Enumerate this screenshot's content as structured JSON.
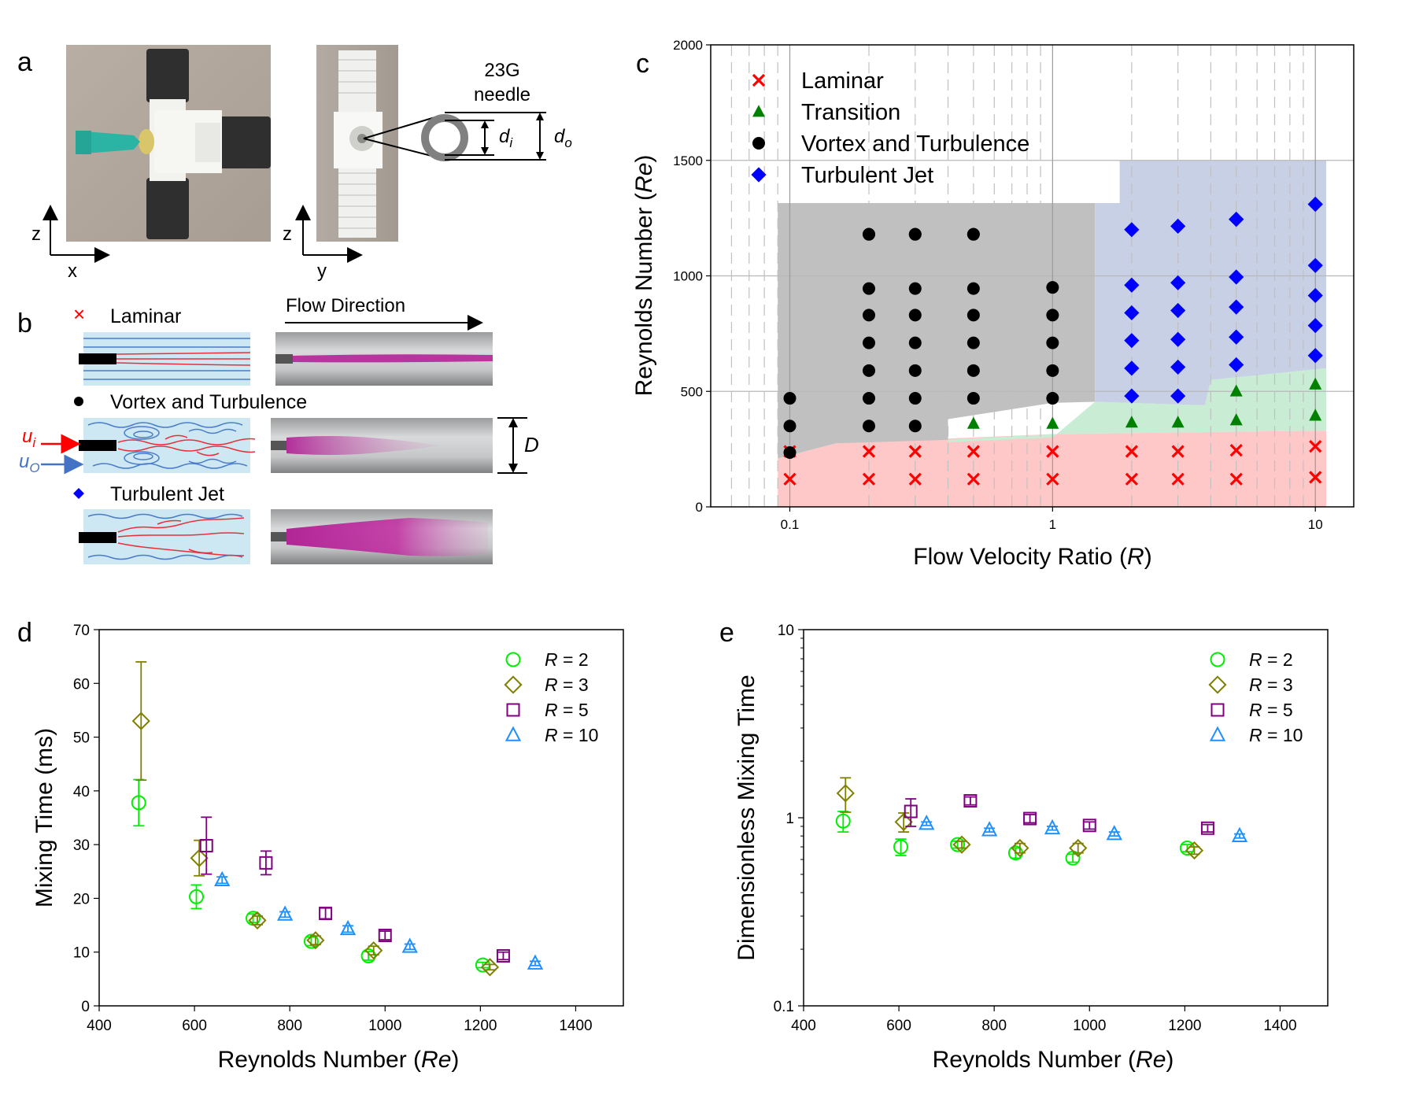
{
  "panels": {
    "a": "a",
    "b": "b",
    "c": "c",
    "d": "d",
    "e": "e"
  },
  "photos": {
    "axis1_vertical": "z",
    "axis1_horizontal": "x",
    "axis2_vertical": "z",
    "axis2_horizontal": "y",
    "needle_label_line1": "23G",
    "needle_label_line2": "needle",
    "di_label": "d",
    "di_sub": "i",
    "do_label": "d",
    "do_sub": "o"
  },
  "flow": {
    "direction_label": "Flow Direction",
    "laminar_label": "Laminar",
    "vortex_label": "Vortex and Turbulence",
    "jet_label": "Turbulent Jet",
    "ui_label": "u",
    "ui_sub": "i",
    "uo_label": "u",
    "uo_sub": "O",
    "D_label": "D"
  },
  "colors": {
    "laminar": "#ff0000",
    "transition": "#008000",
    "vortex": "#000000",
    "jet": "#0000ff",
    "laminar_region": "#ffc8c8",
    "transition_region": "#c8ecd4",
    "vortex_region": "#c0c0c0",
    "jet_region": "#c7d0e4",
    "r2": "#00ee00",
    "r3": "#808000",
    "r5": "#800080",
    "r10": "#1e90ff",
    "dye": "#cc33aa",
    "water": "#cde8f2"
  },
  "chart_data": [
    {
      "id": "c",
      "type": "scatter",
      "xlabel": "Flow Velocity Ratio",
      "xlabel_var": "R",
      "ylabel": "Reynolds Number",
      "ylabel_var": "Re",
      "xscale": "log",
      "xlim": [
        0.05,
        10
      ],
      "ylim": [
        0,
        2000
      ],
      "xticks": [
        "0.1",
        "1",
        "10"
      ],
      "yticks": [
        "0",
        "500",
        "1000",
        "1500",
        "2000"
      ],
      "legend_position": "top-left",
      "series": [
        {
          "name": "Laminar",
          "marker": "x",
          "x": [
            0.1,
            0.2,
            0.3,
            0.5,
            1,
            2,
            3,
            5,
            10,
            0.1,
            0.2,
            0.3,
            0.5,
            1,
            2,
            3,
            5,
            10
          ],
          "y": [
            120,
            120,
            120,
            120,
            120,
            120,
            120,
            120,
            128,
            240,
            240,
            240,
            240,
            240,
            240,
            240,
            245,
            262
          ]
        },
        {
          "name": "Transition",
          "marker": "triangle",
          "x": [
            0.5,
            1,
            2,
            3,
            5,
            10,
            5,
            10
          ],
          "y": [
            360,
            360,
            365,
            365,
            375,
            395,
            500,
            530
          ]
        },
        {
          "name": "Vortex and Turbulence",
          "marker": "circle",
          "x": [
            0.1,
            0.1,
            0.1,
            0.2,
            0.2,
            0.2,
            0.2,
            0.2,
            0.2,
            0.2,
            0.2,
            0.3,
            0.3,
            0.3,
            0.3,
            0.3,
            0.3,
            0.3,
            0.3,
            0.5,
            0.5,
            0.5,
            0.5,
            0.5,
            0.5,
            0.5,
            1,
            1,
            1,
            1,
            1
          ],
          "y": [
            235,
            350,
            470,
            350,
            470,
            590,
            710,
            830,
            945,
            1180,
            1180,
            350,
            470,
            590,
            710,
            830,
            945,
            1180,
            1180,
            470,
            590,
            710,
            830,
            945,
            1180,
            1180,
            470,
            590,
            710,
            830,
            950
          ]
        },
        {
          "name": "Turbulent Jet",
          "marker": "diamond",
          "x": [
            2,
            2,
            2,
            2,
            2,
            2,
            3,
            3,
            3,
            3,
            3,
            3,
            5,
            5,
            5,
            5,
            5,
            5,
            10,
            10,
            10,
            10,
            10,
            10
          ],
          "y": [
            480,
            600,
            720,
            840,
            960,
            1200,
            480,
            605,
            725,
            850,
            970,
            1215,
            615,
            735,
            865,
            995,
            1245,
            1245,
            655,
            785,
            915,
            1045,
            1310,
            1310
          ]
        }
      ],
      "regions": [
        {
          "name": "laminar-region",
          "points": [
            [
              0.09,
              0
            ],
            [
              11,
              0
            ],
            [
              11,
              330
            ],
            [
              1,
              315
            ],
            [
              0.15,
              275
            ],
            [
              0.09,
              210
            ]
          ]
        },
        {
          "name": "transition-region",
          "points": [
            [
              0.4,
              280
            ],
            [
              1,
              300
            ],
            [
              1.45,
              455
            ],
            [
              3.8,
              440
            ],
            [
              4,
              550
            ],
            [
              11,
              600
            ],
            [
              11,
              330
            ],
            [
              1,
              315
            ],
            [
              0.4,
              290
            ]
          ]
        },
        {
          "name": "vortex-region",
          "points": [
            [
              0.09,
              210
            ],
            [
              0.15,
              275
            ],
            [
              0.4,
              290
            ],
            [
              0.4,
              380
            ],
            [
              1,
              450
            ],
            [
              1.45,
              455
            ],
            [
              1.45,
              1315
            ],
            [
              0.09,
              1315
            ]
          ]
        },
        {
          "name": "jet-region",
          "points": [
            [
              1.45,
              455
            ],
            [
              3.8,
              440
            ],
            [
              4,
              550
            ],
            [
              11,
              600
            ],
            [
              11,
              1500
            ],
            [
              1.8,
              1500
            ],
            [
              1.8,
              1315
            ],
            [
              1.45,
              1315
            ]
          ]
        }
      ]
    },
    {
      "id": "d",
      "type": "scatter",
      "xlabel": "Reynolds Number",
      "xlabel_var": "Re",
      "ylabel": "Mixing Time (ms)",
      "xlim": [
        400,
        1500
      ],
      "ylim": [
        0,
        70
      ],
      "xticks": [
        "400",
        "600",
        "800",
        "1000",
        "1200",
        "1400"
      ],
      "yticks": [
        "0",
        "10",
        "20",
        "30",
        "40",
        "50",
        "60",
        "70"
      ],
      "legend_position": "top-right",
      "series": [
        {
          "name": "R = 2",
          "marker": "circle",
          "x": [
            483,
            604,
            723,
            845,
            965,
            1205
          ],
          "y": [
            37.8,
            20.3,
            16.3,
            12.0,
            9.3,
            7.6
          ],
          "err": [
            4.3,
            2.2,
            0.8,
            0.8,
            0.8,
            0.5
          ]
        },
        {
          "name": "R = 3",
          "marker": "diamond",
          "x": [
            488,
            610,
            732,
            854,
            976,
            1220
          ],
          "y": [
            53.0,
            27.5,
            15.9,
            12.2,
            10.3,
            7.2
          ],
          "err": [
            11.0,
            3.3,
            0.8,
            0.8,
            0.8,
            0.5
          ]
        },
        {
          "name": "R = 5",
          "marker": "square",
          "x": [
            625,
            750,
            875,
            1000,
            1248
          ],
          "y": [
            29.8,
            26.6,
            17.2,
            13.1,
            9.3
          ],
          "err": [
            5.3,
            2.2,
            1.0,
            0.8,
            0.7
          ]
        },
        {
          "name": "R = 10",
          "marker": "triangle",
          "x": [
            658,
            790,
            922,
            1052,
            1315
          ],
          "y": [
            23.4,
            17.0,
            14.3,
            11.0,
            7.9
          ],
          "err": [
            0.6,
            0.5,
            0.6,
            0.5,
            0.4
          ]
        }
      ]
    },
    {
      "id": "e",
      "type": "scatter",
      "xlabel": "Reynolds Number",
      "xlabel_var": "Re",
      "ylabel": "Dimensionless Mixing Time",
      "xscale": "linear",
      "yscale": "log",
      "xlim": [
        400,
        1500
      ],
      "ylim": [
        0.1,
        10
      ],
      "xticks": [
        "400",
        "600",
        "800",
        "1000",
        "1200",
        "1400"
      ],
      "yticks": [
        "0.1",
        "1",
        "10"
      ],
      "legend_position": "top-right",
      "series": [
        {
          "name": "R = 2",
          "marker": "circle",
          "x": [
            483,
            604,
            723,
            845,
            965,
            1205
          ],
          "y": [
            0.96,
            0.7,
            0.72,
            0.65,
            0.61,
            0.69
          ],
          "err": [
            0.12,
            0.07,
            0.03,
            0.04,
            0.03,
            0.03
          ]
        },
        {
          "name": "R = 3",
          "marker": "diamond",
          "x": [
            488,
            610,
            732,
            854,
            976,
            1220
          ],
          "y": [
            1.35,
            0.95,
            0.72,
            0.69,
            0.69,
            0.67
          ],
          "err": [
            0.28,
            0.11,
            0.03,
            0.04,
            0.04,
            0.03
          ]
        },
        {
          "name": "R = 5",
          "marker": "square",
          "x": [
            625,
            750,
            875,
            1000,
            1248
          ],
          "y": [
            1.08,
            1.23,
            0.99,
            0.91,
            0.88
          ],
          "err": [
            0.18,
            0.06,
            0.05,
            0.04,
            0.04
          ]
        },
        {
          "name": "R = 10",
          "marker": "triangle",
          "x": [
            658,
            790,
            922,
            1052,
            1315
          ],
          "y": [
            0.93,
            0.86,
            0.88,
            0.82,
            0.8
          ],
          "err": [
            0.02,
            0.02,
            0.02,
            0.02,
            0.02
          ]
        }
      ]
    }
  ]
}
